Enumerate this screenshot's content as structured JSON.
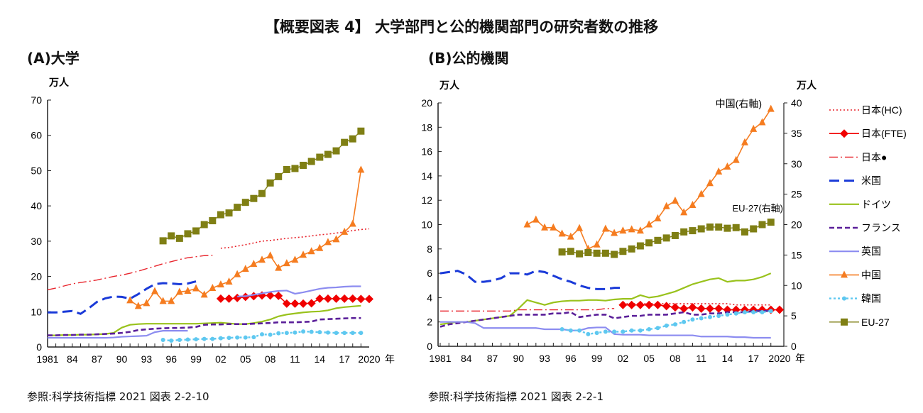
{
  "title": "【概要図表 4】 大学部門と公的機関部門の研究者数の推移",
  "colors": {
    "japan_hc": "#e8242c",
    "japan_fte": "#f00000",
    "japan_dot": "#e8242c",
    "usa": "#1a3ad8",
    "germany": "#99c21c",
    "france": "#5a1f99",
    "uk": "#8c8cf0",
    "china": "#f57c20",
    "korea": "#5ec8f0",
    "eu27": "#7f7f14"
  },
  "legend": [
    {
      "key": "japan_hc",
      "label": "日本(HC)",
      "style": "dotted"
    },
    {
      "key": "japan_fte",
      "label": "日本(FTE)",
      "style": "solid-diamond"
    },
    {
      "key": "japan_dot",
      "label": "日本●",
      "style": "dash-dot"
    },
    {
      "key": "usa",
      "label": "米国",
      "style": "long-dash"
    },
    {
      "key": "germany",
      "label": "ドイツ",
      "style": "solid"
    },
    {
      "key": "france",
      "label": "フランス",
      "style": "short-dash"
    },
    {
      "key": "uk",
      "label": "英国",
      "style": "solid"
    },
    {
      "key": "china",
      "label": "中国",
      "style": "solid-triangle"
    },
    {
      "key": "korea",
      "label": "韓国",
      "style": "dotted-circle"
    },
    {
      "key": "eu27",
      "label": "EU-27",
      "style": "solid-square"
    }
  ],
  "chart_data": [
    {
      "type": "line",
      "title": "(A)大学",
      "ylabel": "万人",
      "xlabel": "年",
      "ylim": [
        0,
        70
      ],
      "yticks": [
        "0",
        "10",
        "20",
        "30",
        "40",
        "50",
        "60",
        "70"
      ],
      "xlim": [
        1981,
        2020
      ],
      "xticks": [
        "1981",
        "84",
        "87",
        "90",
        "93",
        "96",
        "99",
        "02",
        "05",
        "08",
        "11",
        "14",
        "17",
        "2020"
      ],
      "grid": false,
      "source": "参照:科学技術指標 2021 図表 2-2-10",
      "series": [
        {
          "key": "japan_hc",
          "name": "日本(HC)",
          "start": 2002,
          "values": [
            28,
            28.2,
            28.6,
            29,
            29.5,
            30,
            30.2,
            30.5,
            30.8,
            31,
            31.2,
            31.5,
            31.8,
            32,
            32.3,
            32.6,
            33,
            33.3,
            33.5
          ]
        },
        {
          "key": "japan_fte",
          "name": "日本(FTE)",
          "start": 2002,
          "values": [
            13.7,
            13.7,
            13.9,
            14.2,
            14.4,
            14.6,
            14.6,
            14.5,
            12.3,
            12.3,
            12.3,
            12.4,
            13.7,
            13.7,
            13.7,
            13.7,
            13.7,
            13.6,
            13.6
          ]
        },
        {
          "key": "japan_dot",
          "name": "日本●",
          "start": 1981,
          "values": [
            16.2,
            16.7,
            17.3,
            17.9,
            18.3,
            18.6,
            19,
            19.5,
            20,
            20.4,
            20.9,
            21.5,
            22.2,
            22.9,
            23.6,
            24.2,
            24.8,
            25.3,
            25.6,
            25.9,
            26
          ]
        },
        {
          "key": "usa",
          "name": "米国",
          "start": 1981,
          "values": [
            9.8,
            9.8,
            10,
            10.2,
            9.4,
            11,
            12.8,
            13.8,
            14.3,
            14.2,
            13.7,
            15,
            16.5,
            17.8,
            18.1,
            18,
            17.8,
            18,
            18.6
          ]
        },
        {
          "key": "germany",
          "name": "ドイツ",
          "start": 1981,
          "values": [
            3.3,
            3.3,
            3.4,
            3.4,
            3.5,
            3.5,
            3.6,
            3.7,
            4,
            5.5,
            6.3,
            6.5,
            6.6,
            6.6,
            6.6,
            6.6,
            6.6,
            6.6,
            6.6,
            6.7,
            6.8,
            6.9,
            6.7,
            6.5,
            6.5,
            6.8,
            7.2,
            7.8,
            8.7,
            9.2,
            9.5,
            9.8,
            10,
            10.1,
            10.4,
            11,
            11.3,
            11.5,
            11.7
          ]
        },
        {
          "key": "france",
          "name": "フランス",
          "start": 1981,
          "values": [
            3.3,
            3.3,
            3.4,
            3.4,
            3.5,
            3.5,
            3.6,
            3.7,
            3.8,
            4,
            4.3,
            4.8,
            5,
            5.2,
            5.3,
            5.4,
            5.4,
            5.5,
            5.7,
            6.3,
            6.4,
            6.4,
            6.5,
            6.5,
            6.5,
            6.6,
            6.7,
            6.8,
            7,
            7,
            7,
            7.1,
            7.2,
            7.8,
            7.9,
            8,
            8.1,
            8.2,
            8.2
          ]
        },
        {
          "key": "uk",
          "name": "英国",
          "start": 1981,
          "values": [
            2.6,
            2.6,
            2.6,
            2.6,
            2.6,
            2.6,
            2.6,
            2.6,
            2.7,
            2.9,
            3,
            3.1,
            3.2,
            4.2,
            4.6,
            4.6,
            4.6,
            4.6,
            null,
            null,
            null,
            null,
            null,
            14.3,
            14.4,
            14.8,
            15.2,
            15.6,
            15.9,
            16,
            15.1,
            15.5,
            16,
            16.5,
            16.8,
            16.9,
            17.1,
            17.2,
            17.2
          ]
        },
        {
          "key": "china",
          "name": "中国",
          "start": 1991,
          "values": [
            13.2,
            11.6,
            12.4,
            15.8,
            13,
            13,
            15.6,
            15.9,
            16.6,
            14.8,
            16.7,
            17.7,
            18.5,
            20.6,
            22.1,
            23.5,
            24.7,
            25.9,
            22.4,
            23.7,
            24.7,
            26.1,
            27.1,
            28,
            29.7,
            30.5,
            32.6,
            34.9,
            50.2
          ]
        },
        {
          "key": "korea",
          "name": "韓国",
          "start": 1995,
          "values": [
            2,
            1.8,
            2,
            2.1,
            2.2,
            2.3,
            2.3,
            2.5,
            2.6,
            2.7,
            2.7,
            2.8,
            3.6,
            3.5,
            3.9,
            4,
            4.1,
            4.4,
            4.3,
            4.2,
            4.1,
            4,
            4,
            4,
            4
          ]
        },
        {
          "key": "eu27",
          "name": "EU-27",
          "start": 1995,
          "values": [
            30.1,
            31.5,
            30.8,
            32.1,
            32.9,
            34.7,
            35.8,
            37.5,
            38,
            39.6,
            41,
            42.1,
            43.5,
            46.5,
            48.3,
            50.3,
            50.6,
            51.5,
            52.6,
            53.8,
            54.6,
            55.6,
            58,
            59,
            61.2
          ]
        }
      ]
    },
    {
      "type": "line",
      "title": "(B)公的機関",
      "ylabel": "万人",
      "ylabel_right": "万人",
      "xlabel": "年",
      "ylim": [
        0,
        20
      ],
      "ylim_right": [
        0,
        40
      ],
      "yticks": [
        "0",
        "2",
        "4",
        "6",
        "8",
        "10",
        "12",
        "14",
        "16",
        "18",
        "20"
      ],
      "yticks_right": [
        "0",
        "5",
        "10",
        "15",
        "20",
        "25",
        "30",
        "35",
        "40"
      ],
      "xlim": [
        1981,
        2020
      ],
      "xticks": [
        "1981",
        "84",
        "87",
        "90",
        "93",
        "96",
        "99",
        "02",
        "05",
        "08",
        "11",
        "14",
        "17",
        "2020"
      ],
      "grid": false,
      "legend_position": "right",
      "annotations": [
        "中国(右軸)",
        "EU-27(右軸)"
      ],
      "source": "参照:科学技術指標 2021 図表 2-2-1",
      "series": [
        {
          "key": "japan_hc",
          "name": "日本(HC)",
          "start": 2002,
          "values": [
            3.5,
            3.5,
            3.5,
            3.5,
            3.5,
            3.5,
            3.5,
            3.5,
            3.5,
            3.5,
            3.5,
            3.5,
            3.5,
            3.4,
            3.4,
            3.4,
            3.4,
            3.4
          ]
        },
        {
          "key": "japan_fte",
          "name": "日本(FTE)",
          "start": 2002,
          "values": [
            3.4,
            3.4,
            3.4,
            3.4,
            3.4,
            3.3,
            3.2,
            3.1,
            3.2,
            3.1,
            3.1,
            3.1,
            3.0,
            3.0,
            3.0,
            3.0,
            3.0,
            3.0,
            3.0
          ]
        },
        {
          "key": "japan_dot",
          "name": "日本●",
          "start": 1981,
          "values": [
            2.9,
            2.9,
            2.9,
            2.9,
            2.9,
            2.9,
            2.9,
            2.9,
            2.9,
            3,
            3,
            3,
            3,
            3,
            3,
            3,
            3,
            3,
            3,
            3.1,
            3.1
          ]
        },
        {
          "key": "usa",
          "name": "米国",
          "start": 1981,
          "values": [
            6,
            6.1,
            6.2,
            5.9,
            5.3,
            5.3,
            5.4,
            5.6,
            6,
            6,
            5.9,
            6.2,
            6.1,
            5.8,
            5.5,
            5.3,
            5,
            4.8,
            4.7,
            4.7,
            4.8,
            4.8
          ]
        },
        {
          "key": "germany",
          "name": "ドイツ",
          "start": 1981,
          "values": [
            1.8,
            1.9,
            2,
            2,
            2.1,
            2.2,
            2.3,
            2.4,
            2.5,
            3.1,
            3.8,
            3.6,
            3.4,
            3.6,
            3.7,
            3.75,
            3.75,
            3.8,
            3.8,
            3.75,
            3.85,
            3.9,
            3.9,
            4.2,
            4,
            4.1,
            4.3,
            4.5,
            4.8,
            5.1,
            5.3,
            5.5,
            5.6,
            5.3,
            5.4,
            5.4,
            5.5,
            5.7,
            6
          ]
        },
        {
          "key": "france",
          "name": "フランス",
          "start": 1981,
          "values": [
            1.6,
            1.8,
            1.9,
            2,
            2.1,
            2.2,
            2.3,
            2.4,
            2.5,
            2.6,
            2.6,
            2.6,
            2.6,
            2.7,
            2.7,
            2.8,
            2.4,
            2.5,
            2.6,
            2.6,
            2.3,
            2.4,
            2.5,
            2.5,
            2.6,
            2.6,
            2.6,
            2.7,
            2.8,
            2.6,
            2.6,
            2.7,
            2.7,
            2.8,
            2.8,
            2.8,
            2.9,
            2.9,
            2.9
          ]
        },
        {
          "key": "uk",
          "name": "英国",
          "start": 1981,
          "values": [
            2,
            2,
            2,
            2,
            1.9,
            1.5,
            1.5,
            1.5,
            1.5,
            1.5,
            1.5,
            1.5,
            1.4,
            1.4,
            1.4,
            1.3,
            1.3,
            1.5,
            1.55,
            1.55,
            1,
            0.95,
            0.95,
            0.95,
            0.9,
            0.9,
            0.9,
            0.9,
            0.9,
            0.9,
            0.8,
            0.8,
            0.8,
            0.8,
            0.75,
            0.75,
            0.7,
            0.7,
            0.7
          ]
        },
        {
          "key": "china",
          "name": "中国",
          "axis": "right",
          "start": 1991,
          "values": [
            20,
            20.8,
            19.5,
            19.5,
            18.5,
            18,
            19.4,
            16,
            16.7,
            19.3,
            18.6,
            19,
            19.2,
            19,
            20,
            21,
            23,
            23.9,
            22,
            23.2,
            25,
            26.8,
            28.7,
            29.5,
            30.6,
            33.5,
            35.7,
            36.8,
            39
          ]
        },
        {
          "key": "korea",
          "name": "韓国",
          "start": 1995,
          "values": [
            1.4,
            1.3,
            1.3,
            1,
            1.1,
            1.2,
            1.2,
            1.2,
            1.3,
            1.3,
            1.4,
            1.5,
            1.7,
            1.8,
            2,
            2.2,
            2.3,
            2.4,
            2.5,
            2.6,
            2.7,
            2.8,
            2.8,
            2.8,
            2.9
          ]
        },
        {
          "key": "eu27",
          "name": "EU-27",
          "axis": "right",
          "start": 1995,
          "values": [
            15.5,
            15.6,
            15.2,
            15.4,
            15.3,
            15.3,
            15.1,
            15.6,
            16,
            16.5,
            17,
            17.4,
            17.8,
            18.2,
            18.8,
            19,
            19.3,
            19.6,
            19.6,
            19.4,
            19.5,
            18.8,
            19.3,
            20,
            20.4
          ]
        }
      ]
    }
  ]
}
